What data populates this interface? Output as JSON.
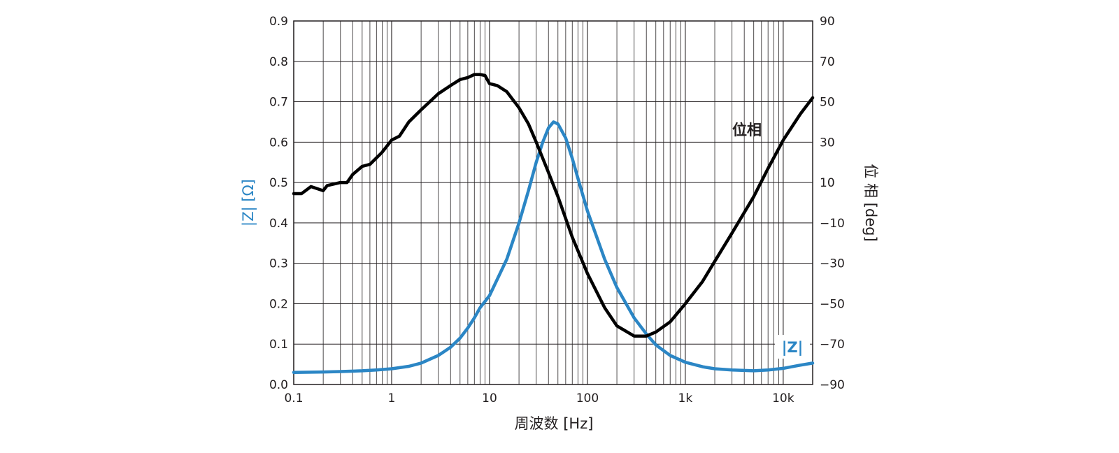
{
  "chart_data": {
    "type": "line",
    "title": "",
    "xlabel": "周波数 [Hz]",
    "ylabel_left": "|Z| [Ω]",
    "ylabel_right": "位 相 [deg]",
    "xscale": "log",
    "xlim": [
      0.1,
      20000
    ],
    "ylim_left": [
      0,
      0.9
    ],
    "ylim_right": [
      -90,
      90
    ],
    "grid": true,
    "x_ticks": [
      {
        "value": 0.1,
        "label": "0.1"
      },
      {
        "value": 1,
        "label": "1"
      },
      {
        "value": 10,
        "label": "10"
      },
      {
        "value": 100,
        "label": "100"
      },
      {
        "value": 1000,
        "label": "1k"
      },
      {
        "value": 10000,
        "label": "10k"
      }
    ],
    "y_left_ticks": [
      "0.0",
      "0.1",
      "0.2",
      "0.3",
      "0.4",
      "0.5",
      "0.6",
      "0.7",
      "0.8",
      "0.9"
    ],
    "y_right_ticks": [
      "−90",
      "−70",
      "−50",
      "−30",
      "−10",
      "10",
      "30",
      "50",
      "70",
      "90"
    ],
    "series": [
      {
        "name": "|Z|",
        "axis": "left",
        "color": "#2b86c5",
        "points": [
          [
            0.1,
            0.03
          ],
          [
            0.2,
            0.031
          ],
          [
            0.3,
            0.032
          ],
          [
            0.5,
            0.034
          ],
          [
            0.7,
            0.036
          ],
          [
            1,
            0.039
          ],
          [
            1.5,
            0.045
          ],
          [
            2,
            0.053
          ],
          [
            3,
            0.072
          ],
          [
            4,
            0.092
          ],
          [
            5,
            0.115
          ],
          [
            6,
            0.14
          ],
          [
            7,
            0.165
          ],
          [
            8,
            0.19
          ],
          [
            10,
            0.22
          ],
          [
            15,
            0.31
          ],
          [
            20,
            0.4
          ],
          [
            25,
            0.48
          ],
          [
            30,
            0.55
          ],
          [
            35,
            0.6
          ],
          [
            40,
            0.635
          ],
          [
            45,
            0.65
          ],
          [
            50,
            0.645
          ],
          [
            60,
            0.61
          ],
          [
            70,
            0.56
          ],
          [
            80,
            0.51
          ],
          [
            100,
            0.43
          ],
          [
            150,
            0.31
          ],
          [
            200,
            0.24
          ],
          [
            300,
            0.165
          ],
          [
            400,
            0.125
          ],
          [
            500,
            0.098
          ],
          [
            700,
            0.072
          ],
          [
            1000,
            0.055
          ],
          [
            1500,
            0.044
          ],
          [
            2000,
            0.039
          ],
          [
            3000,
            0.036
          ],
          [
            5000,
            0.034
          ],
          [
            7000,
            0.036
          ],
          [
            10000,
            0.04
          ],
          [
            15000,
            0.048
          ],
          [
            20000,
            0.053
          ]
        ]
      },
      {
        "name": "位相",
        "axis": "right",
        "color": "#000000",
        "points": [
          [
            0.1,
            4.5
          ],
          [
            0.12,
            4.5
          ],
          [
            0.15,
            8
          ],
          [
            0.2,
            6
          ],
          [
            0.22,
            8.5
          ],
          [
            0.3,
            10
          ],
          [
            0.35,
            10
          ],
          [
            0.4,
            14
          ],
          [
            0.5,
            18
          ],
          [
            0.6,
            19
          ],
          [
            0.8,
            25
          ],
          [
            1,
            31
          ],
          [
            1.2,
            33
          ],
          [
            1.5,
            40
          ],
          [
            2,
            46
          ],
          [
            3,
            54
          ],
          [
            4,
            58
          ],
          [
            5,
            61
          ],
          [
            6,
            62
          ],
          [
            7,
            63.5
          ],
          [
            8,
            63.5
          ],
          [
            9,
            63
          ],
          [
            10,
            59
          ],
          [
            12,
            58
          ],
          [
            15,
            55
          ],
          [
            20,
            47
          ],
          [
            25,
            39
          ],
          [
            30,
            30
          ],
          [
            40,
            15
          ],
          [
            50,
            3
          ],
          [
            70,
            -17
          ],
          [
            100,
            -35
          ],
          [
            150,
            -52
          ],
          [
            200,
            -61
          ],
          [
            300,
            -66
          ],
          [
            400,
            -66
          ],
          [
            500,
            -64
          ],
          [
            700,
            -59
          ],
          [
            1000,
            -50
          ],
          [
            1500,
            -39
          ],
          [
            2000,
            -29
          ],
          [
            3000,
            -15
          ],
          [
            5000,
            3
          ],
          [
            7000,
            17
          ],
          [
            10000,
            31
          ],
          [
            15000,
            44
          ],
          [
            20000,
            52
          ]
        ]
      }
    ],
    "annotations": [
      {
        "text": "位相",
        "series": "位相",
        "position": "upper-right-inside"
      },
      {
        "text": "|Z|",
        "series": "|Z|",
        "position": "lower-right-inside"
      }
    ]
  }
}
